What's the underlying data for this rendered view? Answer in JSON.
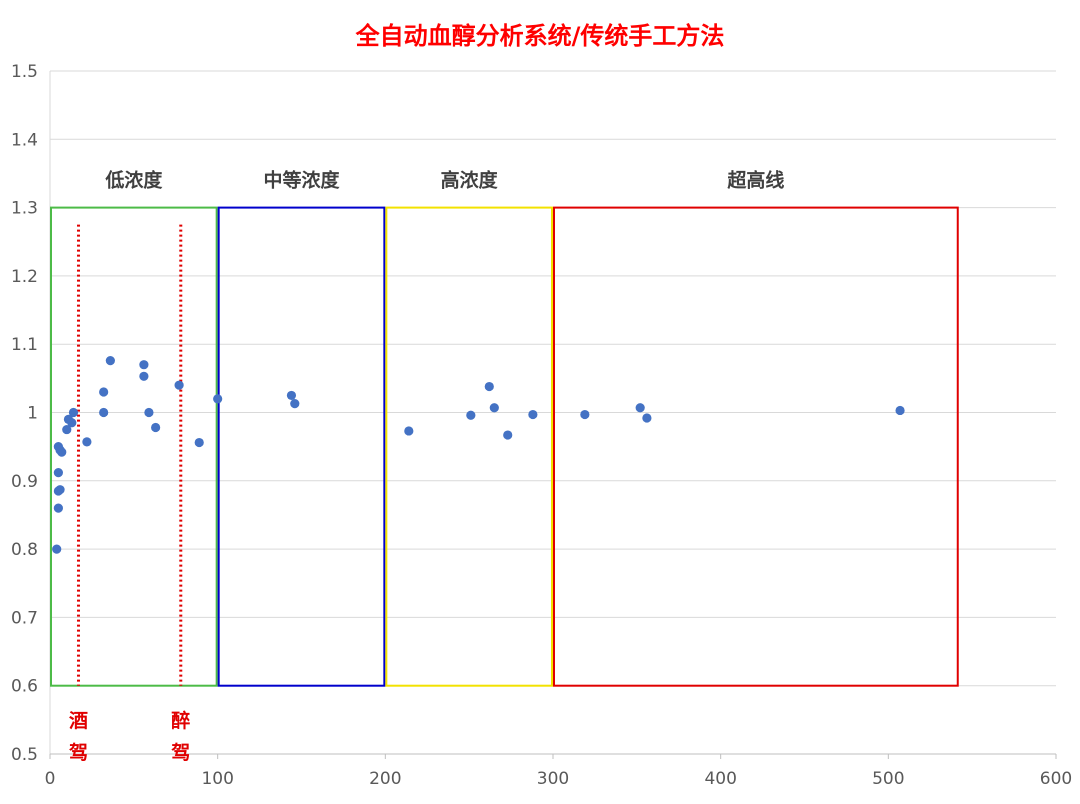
{
  "chart_data": {
    "type": "scatter",
    "title": "全自动血醇分析系统/传统手工方法",
    "xlabel": "",
    "ylabel": "",
    "xlim": [
      0,
      600
    ],
    "ylim": [
      0.5,
      1.5
    ],
    "x_ticks": [
      "0",
      "100",
      "200",
      "300",
      "400",
      "500",
      "600"
    ],
    "y_ticks": [
      "0.5",
      "0.6",
      "0.7",
      "0.8",
      "0.9",
      "1",
      "1.1",
      "1.2",
      "1.3",
      "1.4",
      "1.5"
    ],
    "grid": "horizontal",
    "marker_color": "#4472c4",
    "series": [
      {
        "points": [
          {
            "x": 4,
            "y": 0.8
          },
          {
            "x": 5,
            "y": 0.86
          },
          {
            "x": 5,
            "y": 0.885
          },
          {
            "x": 6,
            "y": 0.887
          },
          {
            "x": 5,
            "y": 0.912
          },
          {
            "x": 5,
            "y": 0.95
          },
          {
            "x": 6,
            "y": 0.945
          },
          {
            "x": 7,
            "y": 0.942
          },
          {
            "x": 10,
            "y": 0.975
          },
          {
            "x": 11,
            "y": 0.99
          },
          {
            "x": 13,
            "y": 0.985
          },
          {
            "x": 14,
            "y": 1.0
          },
          {
            "x": 22,
            "y": 0.957
          },
          {
            "x": 32,
            "y": 1.03
          },
          {
            "x": 32,
            "y": 1.0
          },
          {
            "x": 36,
            "y": 1.076
          },
          {
            "x": 56,
            "y": 1.07
          },
          {
            "x": 56,
            "y": 1.053
          },
          {
            "x": 59,
            "y": 1.0
          },
          {
            "x": 63,
            "y": 0.978
          },
          {
            "x": 77,
            "y": 1.04
          },
          {
            "x": 89,
            "y": 0.956
          },
          {
            "x": 100,
            "y": 1.02
          },
          {
            "x": 144,
            "y": 1.025
          },
          {
            "x": 146,
            "y": 1.013
          },
          {
            "x": 214,
            "y": 0.973
          },
          {
            "x": 251,
            "y": 0.996
          },
          {
            "x": 262,
            "y": 1.038
          },
          {
            "x": 265,
            "y": 1.007
          },
          {
            "x": 273,
            "y": 0.967
          },
          {
            "x": 288,
            "y": 0.997
          },
          {
            "x": 319,
            "y": 0.997
          },
          {
            "x": 352,
            "y": 1.007
          },
          {
            "x": 356,
            "y": 0.992
          },
          {
            "x": 507,
            "y": 1.003
          }
        ]
      }
    ],
    "regions": [
      {
        "label": "低浓度",
        "x0": 0,
        "x1": 100,
        "y0": 0.6,
        "y1": 1.3,
        "color": "#4cbb47"
      },
      {
        "label": "中等浓度",
        "x0": 100,
        "x1": 200,
        "y0": 0.6,
        "y1": 1.3,
        "color": "#0000cc"
      },
      {
        "label": "高浓度",
        "x0": 200,
        "x1": 300,
        "y0": 0.6,
        "y1": 1.3,
        "color": "#f2e200"
      },
      {
        "label": "超高线",
        "x0": 300,
        "x1": 542,
        "y0": 0.6,
        "y1": 1.3,
        "color": "#e00000"
      }
    ],
    "reference_lines": [
      {
        "x": 17,
        "label_top": "酒",
        "label_bottom": "驾",
        "color": "#e00000"
      },
      {
        "x": 78,
        "label_top": "醉",
        "label_bottom": "驾",
        "color": "#e00000"
      }
    ]
  }
}
